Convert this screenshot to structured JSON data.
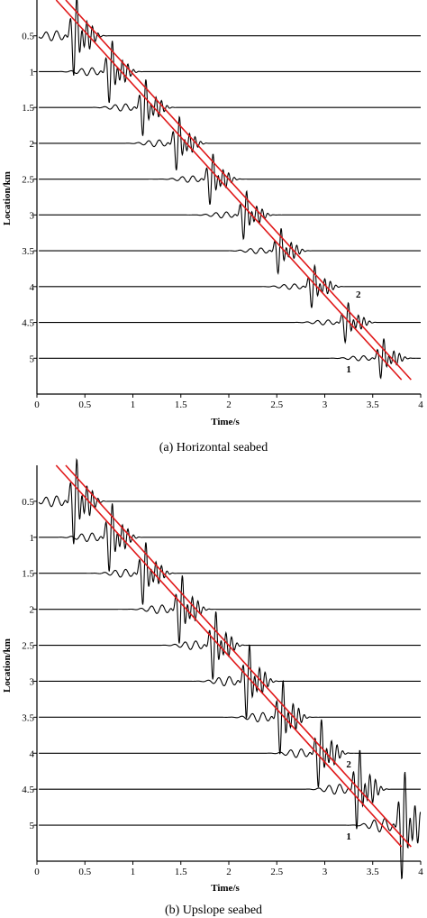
{
  "colors": {
    "trace": "#000000",
    "fit_line": "#e0191a",
    "axis": "#000000"
  },
  "chart_data": [
    {
      "type": "line",
      "caption": "(a) Horizontal seabed",
      "xlabel": "Time/s",
      "ylabel": "Location/km",
      "xlim": [
        0,
        4.0
      ],
      "ylim": [
        0,
        5.5
      ],
      "y_inverted": true,
      "x_ticks": [
        "0",
        "0.5",
        "1",
        "1.5",
        "2",
        "2.5",
        "3",
        "3.5",
        "4"
      ],
      "y_ticks": [
        "0.5",
        "1",
        "1.5",
        "2",
        "2.5",
        "3",
        "3.5",
        "4",
        "4.5",
        "5"
      ],
      "series_kind": "waveform traces (one per location)",
      "traces": [
        {
          "location": 0.5,
          "arrival": 0.4,
          "amp": 1.4
        },
        {
          "location": 1.0,
          "arrival": 0.77,
          "amp": 1.1
        },
        {
          "location": 1.5,
          "arrival": 1.12,
          "amp": 1.0
        },
        {
          "location": 2.0,
          "arrival": 1.47,
          "amp": 0.95
        },
        {
          "location": 2.5,
          "arrival": 1.82,
          "amp": 0.9
        },
        {
          "location": 3.0,
          "arrival": 2.17,
          "amp": 0.85
        },
        {
          "location": 3.5,
          "arrival": 2.53,
          "amp": 0.8
        },
        {
          "location": 4.0,
          "arrival": 2.88,
          "amp": 0.75
        },
        {
          "location": 4.5,
          "arrival": 3.23,
          "amp": 0.7
        },
        {
          "location": 5.0,
          "arrival": 3.6,
          "amp": 0.7
        }
      ],
      "fit_lines": [
        {
          "label": "1",
          "x": [
            0.2,
            3.8
          ],
          "y": [
            0.0,
            5.3
          ],
          "label_at": [
            3.25,
            5.15
          ]
        },
        {
          "label": "2",
          "x": [
            0.3,
            3.9
          ],
          "y": [
            0.0,
            5.3
          ],
          "label_at": [
            3.35,
            4.1
          ]
        }
      ]
    },
    {
      "type": "line",
      "caption": "(b) Upslope seabed",
      "xlabel": "Time/s",
      "ylabel": "Location/km",
      "xlim": [
        0,
        4.0
      ],
      "ylim": [
        0,
        5.5
      ],
      "y_inverted": true,
      "x_ticks": [
        "0",
        "0.5",
        "1",
        "1.5",
        "2",
        "2.5",
        "3",
        "3.5",
        "4"
      ],
      "y_ticks": [
        "0.5",
        "1",
        "1.5",
        "2",
        "2.5",
        "3",
        "3.5",
        "4",
        "4.5",
        "5"
      ],
      "series_kind": "waveform traces (one per location)",
      "traces": [
        {
          "location": 0.5,
          "arrival": 0.4,
          "amp": 1.5
        },
        {
          "location": 1.0,
          "arrival": 0.77,
          "amp": 1.2
        },
        {
          "location": 1.5,
          "arrival": 1.12,
          "amp": 1.1
        },
        {
          "location": 2.0,
          "arrival": 1.5,
          "amp": 1.2
        },
        {
          "location": 2.5,
          "arrival": 1.85,
          "amp": 1.2
        },
        {
          "location": 3.0,
          "arrival": 2.2,
          "amp": 1.3
        },
        {
          "location": 3.5,
          "arrival": 2.55,
          "amp": 1.3
        },
        {
          "location": 4.0,
          "arrival": 2.95,
          "amp": 1.2
        },
        {
          "location": 4.5,
          "arrival": 3.35,
          "amp": 1.4
        },
        {
          "location": 5.0,
          "arrival": 3.82,
          "amp": 1.9
        }
      ],
      "fit_lines": [
        {
          "label": "1",
          "x": [
            0.2,
            3.8
          ],
          "y": [
            0.0,
            5.3
          ],
          "label_at": [
            3.25,
            5.15
          ]
        },
        {
          "label": "2",
          "x": [
            0.3,
            3.9
          ],
          "y": [
            0.0,
            5.3
          ],
          "label_at": [
            3.25,
            4.15
          ]
        }
      ]
    }
  ]
}
